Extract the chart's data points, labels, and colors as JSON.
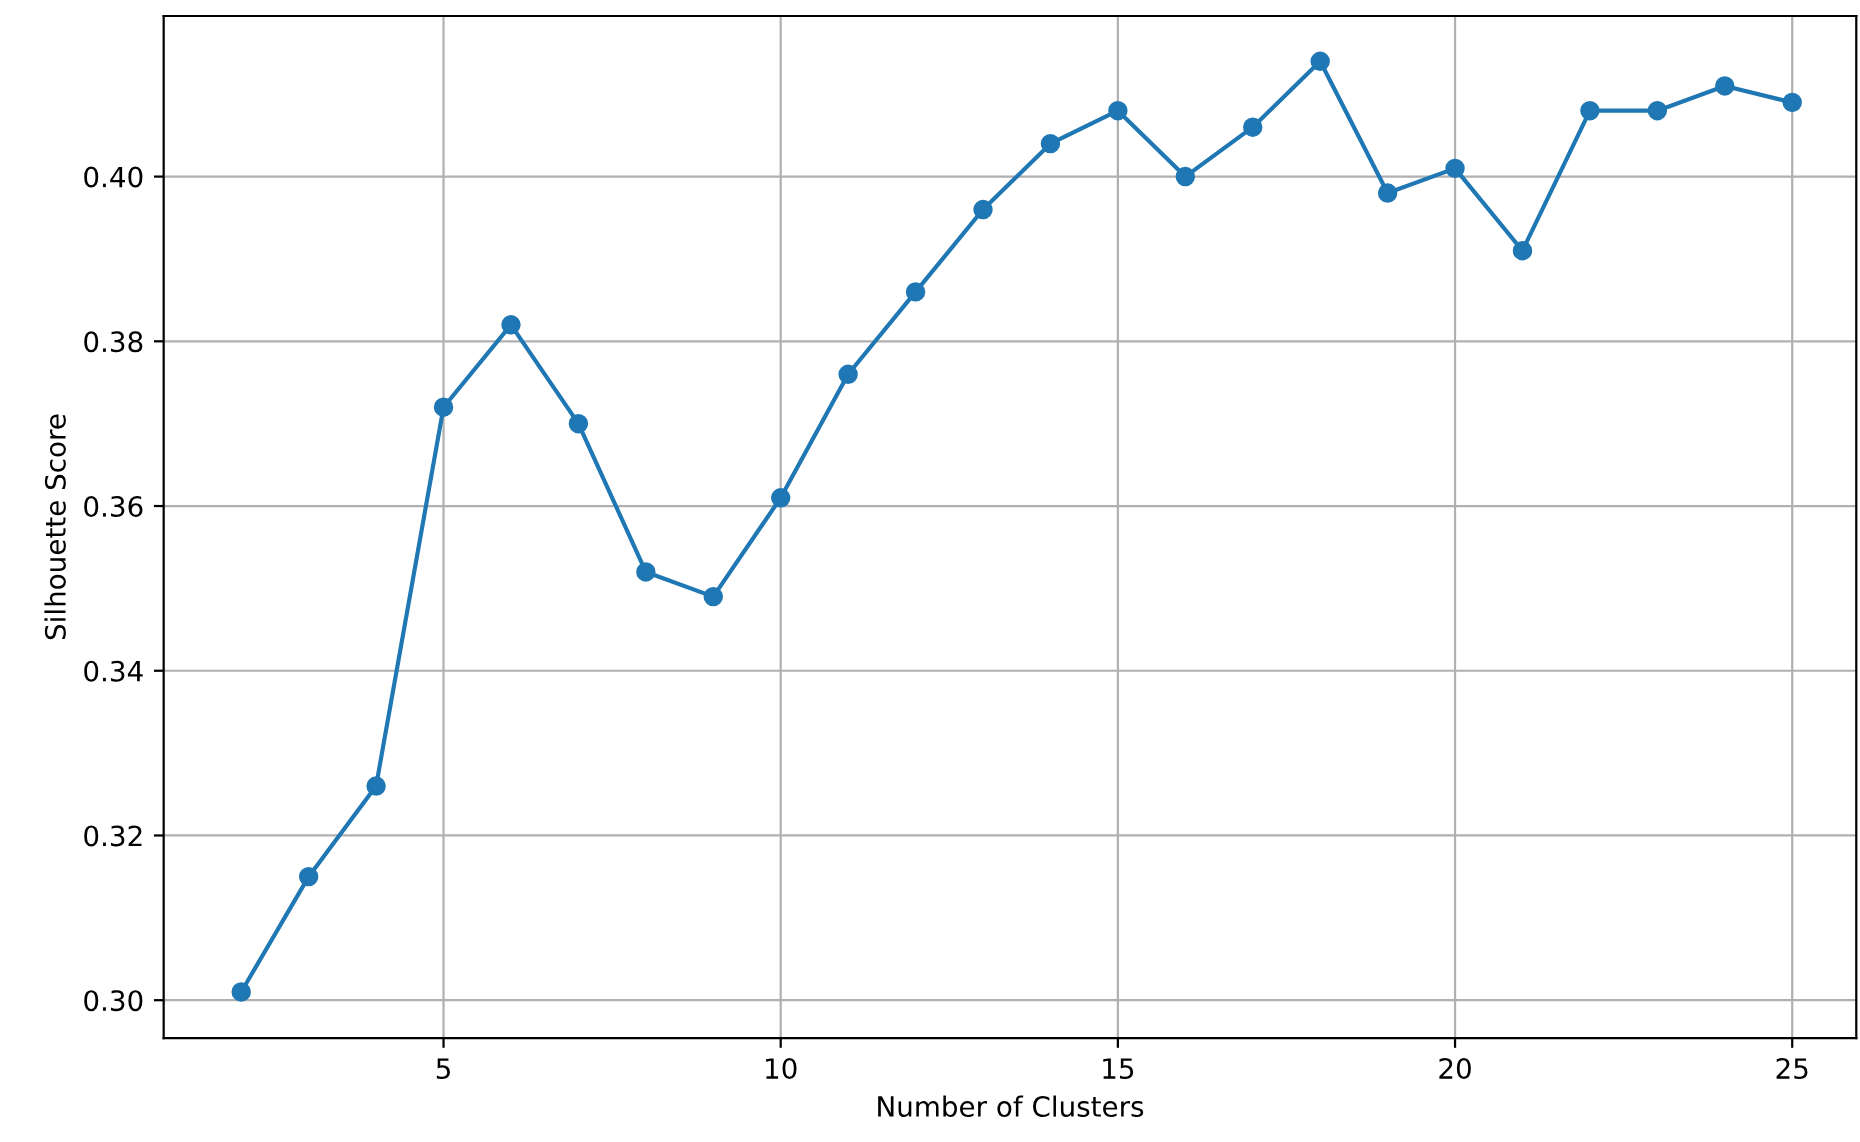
{
  "chart_data": {
    "type": "line",
    "xlabel": "Number of Clusters",
    "ylabel": "Silhouette Score",
    "x": [
      2,
      3,
      4,
      5,
      6,
      7,
      8,
      9,
      10,
      11,
      12,
      13,
      14,
      15,
      16,
      17,
      18,
      19,
      20,
      21,
      22,
      23,
      24,
      25
    ],
    "series": [
      {
        "color": "#1f77b4",
        "values": [
          0.301,
          0.315,
          0.326,
          0.372,
          0.382,
          0.37,
          0.352,
          0.349,
          0.361,
          0.376,
          0.386,
          0.396,
          0.404,
          0.408,
          0.4,
          0.406,
          0.414,
          0.398,
          0.401,
          0.391,
          0.408,
          0.408,
          0.411,
          0.409
        ]
      }
    ],
    "xlim": [
      0.85,
      25.95
    ],
    "ylim": [
      0.2954,
      0.4195
    ],
    "xticks": [
      5,
      10,
      15,
      20,
      25
    ],
    "yticks": [
      {
        "value": 0.3,
        "label": "0.30"
      },
      {
        "value": 0.32,
        "label": "0.32"
      },
      {
        "value": 0.34,
        "label": "0.34"
      },
      {
        "value": 0.36,
        "label": "0.36"
      },
      {
        "value": 0.38,
        "label": "0.38"
      },
      {
        "value": 0.4,
        "label": "0.40"
      }
    ],
    "grid": true,
    "marker": "circle",
    "line_style": "solid"
  }
}
